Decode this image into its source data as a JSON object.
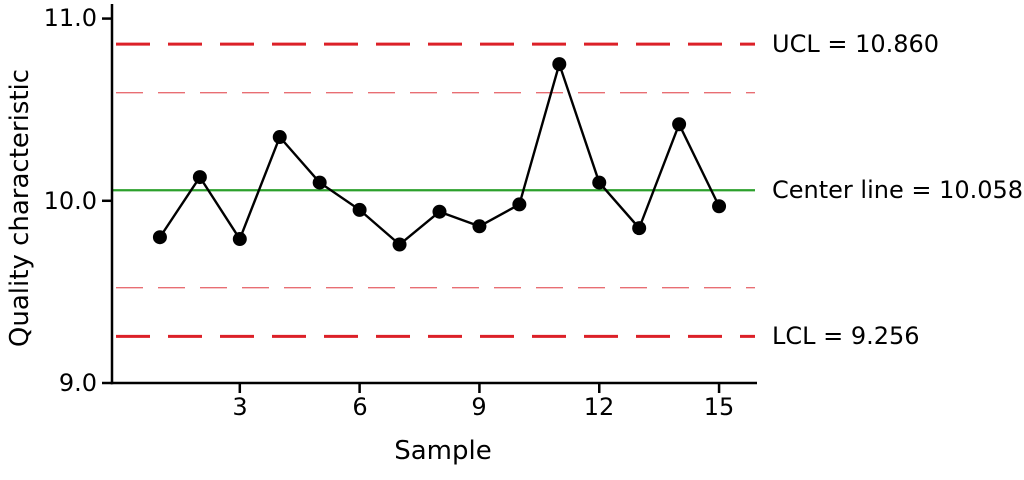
{
  "figure": {
    "background": "#ffffff"
  },
  "annotations": {
    "ucl_label": "UCL = 10.860",
    "center_label": "Center line = 10.058",
    "lcl_label": "LCL = 9.256"
  },
  "chart_data": {
    "type": "line",
    "title": "",
    "xlabel": "Sample",
    "ylabel": "Quality characteristic",
    "x": [
      1,
      2,
      3,
      4,
      5,
      6,
      7,
      8,
      9,
      10,
      11,
      12,
      13,
      14,
      15
    ],
    "values": [
      9.8,
      10.13,
      9.79,
      10.35,
      10.1,
      9.95,
      9.76,
      9.94,
      9.86,
      9.98,
      10.75,
      10.1,
      9.85,
      10.42,
      9.97
    ],
    "series_name": "Quality characteristic",
    "xticks": [
      3,
      6,
      9,
      12,
      15
    ],
    "xtick_labels": [
      "3",
      "6",
      "9",
      "12",
      "15"
    ],
    "yticks": [
      9.0,
      10.0,
      11.0
    ],
    "ytick_labels": [
      "9.0",
      "10.0",
      "11.0"
    ],
    "xlim": [
      -0.2,
      15.9
    ],
    "ylim": [
      9.0,
      11.08
    ],
    "ucl": 10.86,
    "center_line": 10.058,
    "lcl": 9.256,
    "two_sigma_upper": 10.593,
    "two_sigma_lower": 9.523,
    "grid": false,
    "legend": null,
    "colors": {
      "data_line": "#000000",
      "marker": "#000000",
      "control_limit": "#dc2028",
      "warning_limit": "#dc2028",
      "center_line": "#2ca02c",
      "axis": "#000000"
    }
  }
}
